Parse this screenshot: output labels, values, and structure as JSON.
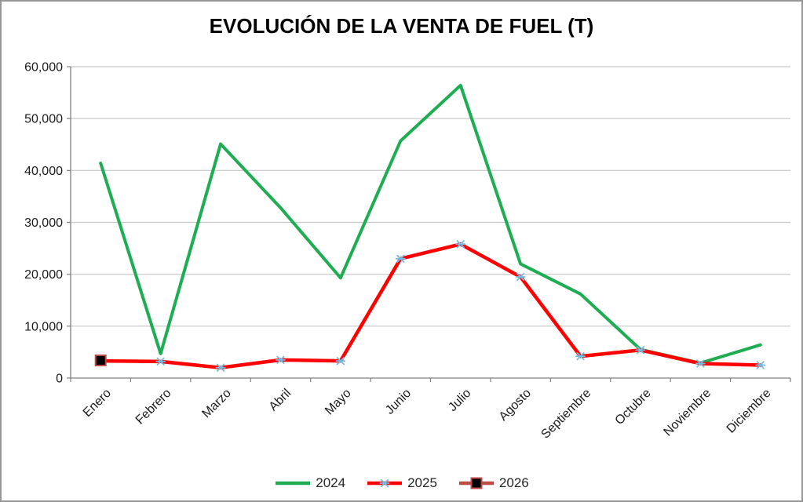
{
  "frame": {
    "border_color": "#979797",
    "background": "#FFFFFF"
  },
  "chart_data": {
    "type": "line",
    "title": "EVOLUCIÓN DE LA VENTA DE FUEL (T)",
    "categories": [
      "Enero",
      "Febrero",
      "Marzo",
      "Abril",
      "Mayo",
      "Junio",
      "Julio",
      "Agosto",
      "Septiembre",
      "Octubre",
      "Noviembre",
      "Diciembre"
    ],
    "series": [
      {
        "name": "2024",
        "color": "#1FAD54",
        "line_width": 4,
        "marker": "none",
        "values": [
          41400,
          4700,
          45100,
          32800,
          19300,
          45700,
          56400,
          22000,
          16200,
          5500,
          2900,
          6400
        ]
      },
      {
        "name": "2025",
        "color": "#FF0000",
        "line_width": 4.5,
        "marker": "asterisk",
        "marker_color": "#72BBE2",
        "values": [
          3300,
          3200,
          2000,
          3500,
          3300,
          23000,
          25800,
          19500,
          4200,
          5400,
          2800,
          2500
        ]
      },
      {
        "name": "2026",
        "color": "#BE4B48",
        "line_width": 4,
        "marker": "square",
        "marker_color": "#000000",
        "marker_border": "#BE4B48",
        "values": [
          3400,
          null,
          null,
          null,
          null,
          null,
          null,
          null,
          null,
          null,
          null,
          null
        ]
      }
    ],
    "y_axis": {
      "min": 0,
      "max": 60000,
      "step": 10000,
      "tick_labels": [
        "0",
        "10,000",
        "20,000",
        "30,000",
        "40,000",
        "50,000",
        "60,000"
      ]
    },
    "x_axis": {
      "label_rotation": -45
    },
    "grid": true,
    "legend_position": "bottom",
    "styles": {
      "gridline_color": "#C6C6C6",
      "axis_color": "#808080",
      "tick_text_color": "#1a1a1a",
      "title_color": "#000000"
    }
  }
}
